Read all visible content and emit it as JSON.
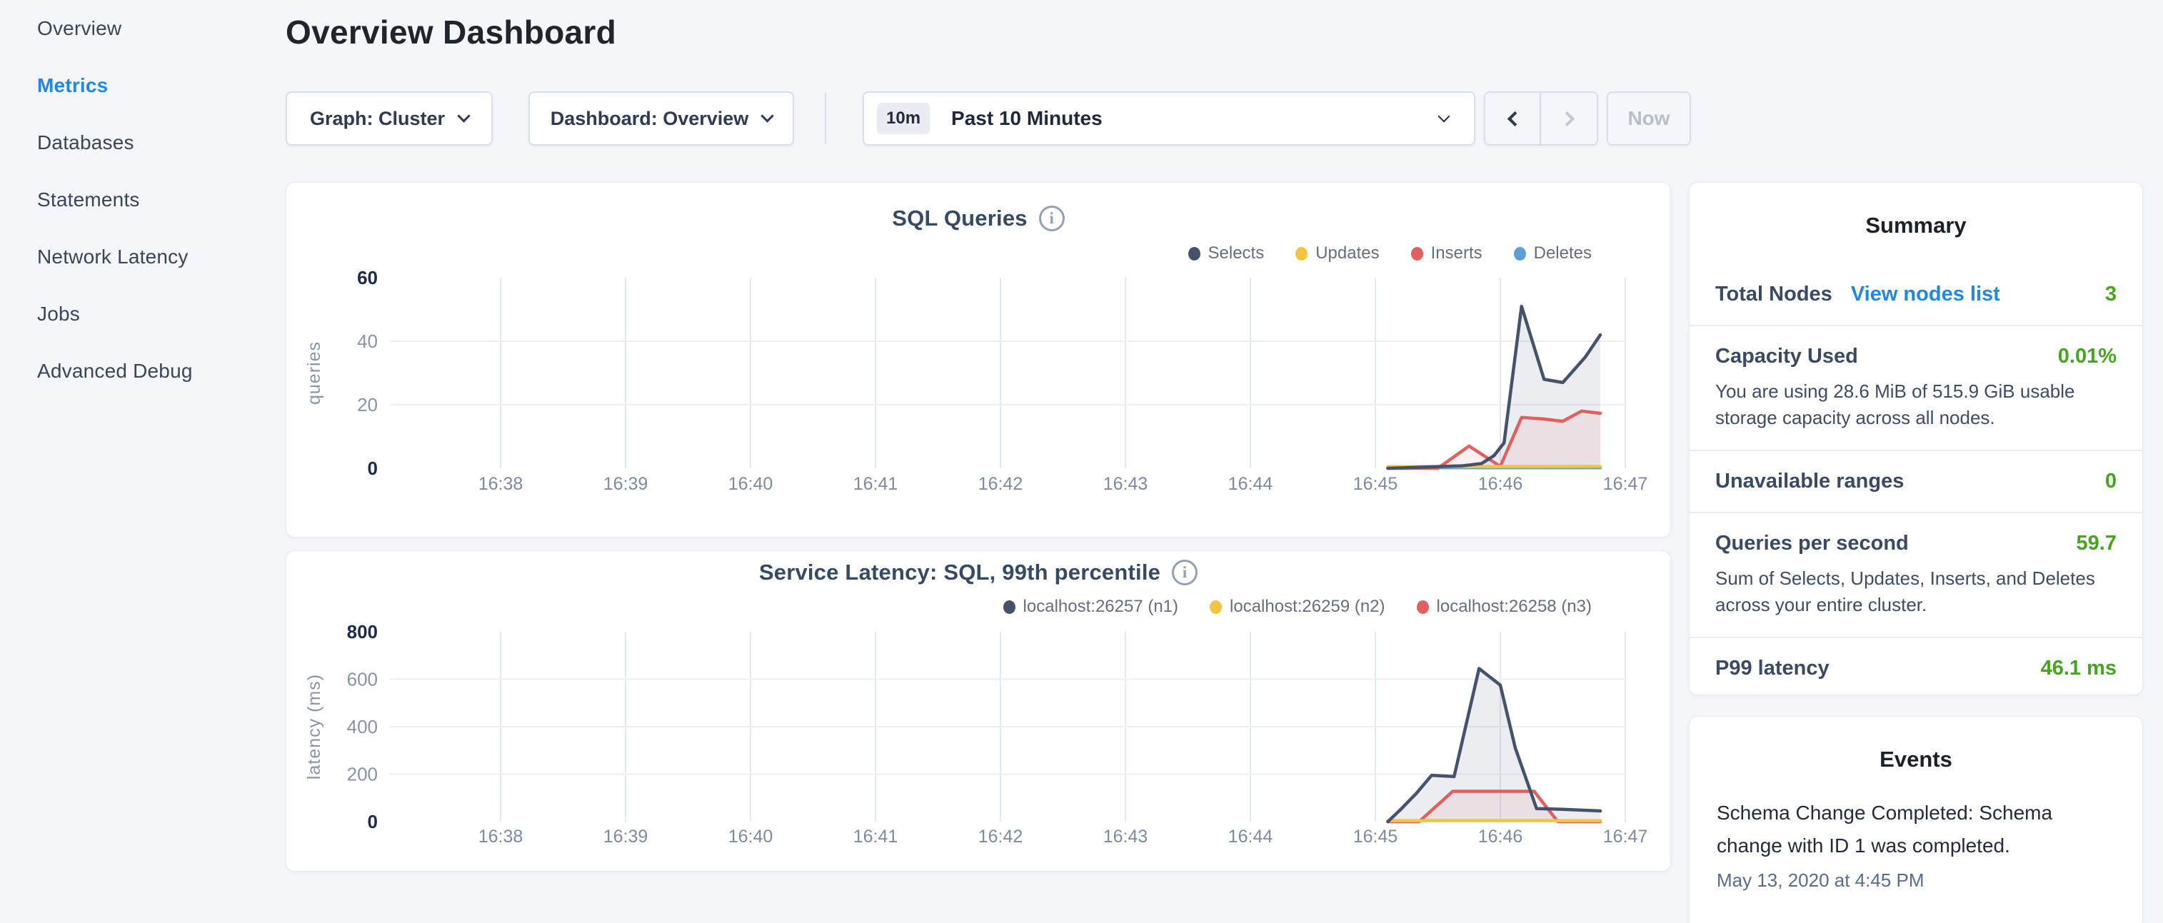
{
  "theme": {
    "accent_blue": "#1f87e5",
    "value_green": "#46a421",
    "series_navy": "#45526b",
    "series_yellow": "#f0c53f",
    "series_red": "#e06060",
    "series_blue": "#5b9fd4"
  },
  "sidebar": {
    "items": [
      {
        "label": "Overview",
        "active": false
      },
      {
        "label": "Metrics",
        "active": true
      },
      {
        "label": "Databases",
        "active": false
      },
      {
        "label": "Statements",
        "active": false
      },
      {
        "label": "Network Latency",
        "active": false
      },
      {
        "label": "Jobs",
        "active": false
      },
      {
        "label": "Advanced Debug",
        "active": false
      }
    ]
  },
  "header": {
    "title": "Overview Dashboard"
  },
  "controls": {
    "graph_label": "Graph: Cluster",
    "dashboard_label": "Dashboard: Overview",
    "time_badge": "10m",
    "time_label": "Past 10 Minutes",
    "now_label": "Now"
  },
  "summary": {
    "title": "Summary",
    "rows": [
      {
        "label": "Total Nodes",
        "link": "View nodes list",
        "value": "3"
      },
      {
        "label": "Capacity Used",
        "value": "0.01%",
        "subtext": "You are using 28.6 MiB of 515.9 GiB usable storage capacity across all nodes."
      },
      {
        "label": "Unavailable ranges",
        "value": "0"
      },
      {
        "label": "Queries per second",
        "value": "59.7",
        "subtext": "Sum of Selects, Updates, Inserts, and Deletes across your entire cluster."
      },
      {
        "label": "P99 latency",
        "value": "46.1 ms"
      }
    ]
  },
  "events": {
    "title": "Events",
    "items": [
      {
        "text": "Schema Change Completed: Schema change with ID 1 was completed.",
        "timestamp": "May 13, 2020 at 4:45 PM"
      }
    ]
  },
  "chart_data": [
    {
      "type": "line",
      "title": "SQL Queries",
      "ylabel": "queries",
      "xlabel": "",
      "ylim": [
        0,
        60
      ],
      "y_ticks": [
        0,
        20,
        40,
        60
      ],
      "x_ticks": [
        "16:38",
        "16:39",
        "16:40",
        "16:41",
        "16:42",
        "16:43",
        "16:44",
        "16:45",
        "16:46",
        "16:47"
      ],
      "x_unit_minutes_after": "16:38",
      "grid": "on",
      "legend_position": "top-right",
      "series": [
        {
          "name": "Selects",
          "color": "#45526b",
          "fill": "rgba(69,82,107,0.10)",
          "points": [
            [
              7.1,
              0
            ],
            [
              7.4,
              0.4
            ],
            [
              7.7,
              0.8
            ],
            [
              7.85,
              1.5
            ],
            [
              7.95,
              4
            ],
            [
              8.03,
              8
            ],
            [
              8.17,
              51
            ],
            [
              8.35,
              28
            ],
            [
              8.5,
              27
            ],
            [
              8.68,
              35
            ],
            [
              8.8,
              42
            ]
          ]
        },
        {
          "name": "Updates",
          "color": "#f0c53f",
          "fill": "none",
          "points": [
            [
              7.1,
              0.5
            ],
            [
              8.8,
              0.6
            ]
          ]
        },
        {
          "name": "Inserts",
          "color": "#e06060",
          "fill": "rgba(224,96,96,0.09)",
          "points": [
            [
              7.1,
              0
            ],
            [
              7.5,
              0
            ],
            [
              7.75,
              7
            ],
            [
              8.0,
              0.6
            ],
            [
              8.17,
              16
            ],
            [
              8.35,
              15.5
            ],
            [
              8.5,
              14.8
            ],
            [
              8.65,
              18
            ],
            [
              8.8,
              17.3
            ]
          ]
        },
        {
          "name": "Deletes",
          "color": "#5b9fd4",
          "fill": "none",
          "points": [
            [
              7.1,
              0.2
            ],
            [
              8.8,
              0.2
            ]
          ]
        }
      ]
    },
    {
      "type": "line",
      "title": "Service Latency: SQL, 99th percentile",
      "ylabel": "latency (ms)",
      "xlabel": "",
      "ylim": [
        0,
        800
      ],
      "y_ticks": [
        0,
        200,
        400,
        600,
        800
      ],
      "x_ticks": [
        "16:38",
        "16:39",
        "16:40",
        "16:41",
        "16:42",
        "16:43",
        "16:44",
        "16:45",
        "16:46",
        "16:47"
      ],
      "x_unit_minutes_after": "16:38",
      "grid": "on",
      "legend_position": "top-right",
      "series": [
        {
          "name": "localhost:26257 (n1)",
          "color": "#45526b",
          "fill": "rgba(69,82,107,0.10)",
          "points": [
            [
              7.1,
              0
            ],
            [
              7.2,
              50
            ],
            [
              7.33,
              120
            ],
            [
              7.45,
              195
            ],
            [
              7.63,
              190
            ],
            [
              7.83,
              645
            ],
            [
              8.0,
              575
            ],
            [
              8.12,
              310
            ],
            [
              8.29,
              55
            ],
            [
              8.5,
              52
            ],
            [
              8.8,
              45
            ]
          ]
        },
        {
          "name": "localhost:26259 (n2)",
          "color": "#f0c53f",
          "fill": "none",
          "points": [
            [
              7.1,
              4
            ],
            [
              8.8,
              4
            ]
          ]
        },
        {
          "name": "localhost:26258 (n3)",
          "color": "#e06060",
          "fill": "rgba(224,96,96,0.09)",
          "points": [
            [
              7.1,
              0
            ],
            [
              7.35,
              0
            ],
            [
              7.62,
              128
            ],
            [
              8.27,
              128
            ],
            [
              8.46,
              0
            ],
            [
              8.8,
              0
            ]
          ]
        }
      ]
    }
  ]
}
